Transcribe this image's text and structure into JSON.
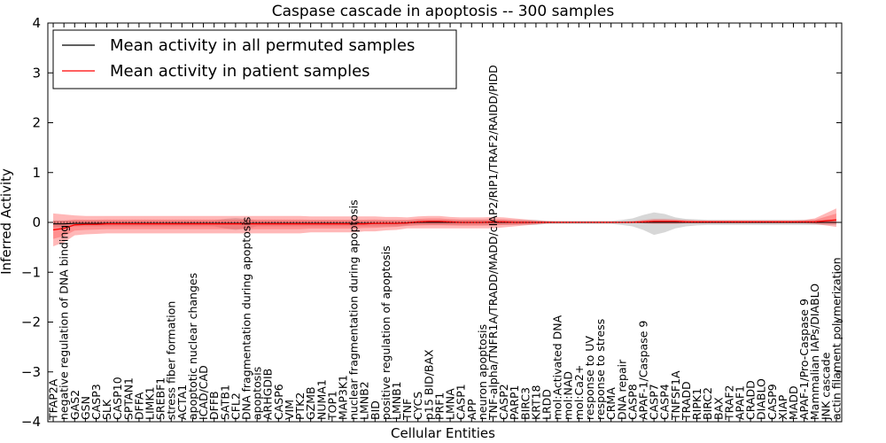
{
  "chart_data": {
    "type": "line",
    "title": "Caspase cascade in apoptosis -- 300 samples",
    "xlabel": "Cellular Entities",
    "ylabel": "Inferred Activity",
    "ylim": [
      -4,
      4
    ],
    "yticks": [
      -4,
      -3,
      -2,
      -1,
      0,
      1,
      2,
      3,
      4
    ],
    "ytick_labels": [
      "−4",
      "−3",
      "−2",
      "−1",
      "0",
      "1",
      "2",
      "3",
      "4"
    ],
    "legend_position": "top-left",
    "categories": [
      "TFAP2A",
      "negative regulation of DNA binding",
      "GAS2",
      "GSN",
      "CASP3",
      "SLK",
      "CASP10",
      "SPTAN1",
      "DFFA",
      "LIMK1",
      "SREBF1",
      "stress fiber formation",
      "ACTA1",
      "apoptotic nuclear changes",
      "ICAD/CAD",
      "DFFB",
      "SATB1",
      "CFL2",
      "DNA fragmentation during apoptosis",
      "apoptosis",
      "ARHGDIB",
      "CASP6",
      "VIM",
      "PTK2",
      "GZMB",
      "NUMA1",
      "TOP1",
      "MAP3K1",
      "nuclear fragmentation during apoptosis",
      "LMNB2",
      "BID",
      "positive regulation of apoptosis",
      "LMNB1",
      "TNF",
      "CYCS",
      "p15 BID/BAX",
      "PRF1",
      "LMNA",
      "CASP1",
      "APP",
      "neuron apoptosis",
      "TNF-alpha/TNFR1A/TRADD/MADD/cIAP2/RIP1/TRAF2/RAIDD/PIDD",
      "CASP2",
      "PARP1",
      "BIRC3",
      "KRT18",
      "LRDD",
      "mol:Activated DNA",
      "mol:NAD",
      "mol:Ca2+",
      "response to UV",
      "response to stress",
      "CRMA",
      "DNA repair",
      "CASP8",
      "APAF-1/Caspase 9",
      "CASP7",
      "CASP4",
      "TNFSF1A",
      "TRADD",
      "RIPK1",
      "BIRC2",
      "BAX",
      "TRAF2",
      "APAF1",
      "CRADD",
      "DIABLO",
      "CASP9",
      "XIAP",
      "MADD",
      "APAF-1/Pro-Caspase 9",
      "Mammalian IAPs/DIABLO",
      "JNK cascade",
      "actin filament polymerization"
    ],
    "series": [
      {
        "name": "Mean activity in all permuted samples",
        "color": "#000000",
        "values": [
          -0.03,
          -0.03,
          -0.02,
          -0.02,
          -0.02,
          -0.02,
          -0.02,
          -0.02,
          -0.02,
          -0.02,
          -0.02,
          -0.02,
          -0.02,
          -0.02,
          -0.02,
          -0.02,
          -0.02,
          -0.02,
          -0.02,
          -0.02,
          -0.02,
          -0.02,
          -0.02,
          -0.02,
          -0.02,
          -0.02,
          -0.02,
          -0.02,
          -0.02,
          -0.02,
          -0.02,
          -0.02,
          -0.02,
          -0.01,
          0.0,
          0.0,
          0.0,
          0.0,
          0.0,
          0.0,
          0.0,
          0.0,
          0.0,
          0.0,
          0.0,
          0.0,
          0.0,
          0.0,
          0.0,
          0.0,
          0.0,
          0.0,
          0.0,
          0.0,
          0.0,
          0.0,
          0.0,
          0.0,
          0.0,
          0.0,
          0.0,
          0.0,
          0.0,
          0.0,
          0.0,
          0.0,
          0.0,
          0.0,
          0.0,
          0.0,
          0.0,
          0.0,
          0.0,
          0.0
        ],
        "band_lower": [
          -0.1,
          -0.1,
          -0.08,
          -0.08,
          -0.08,
          -0.08,
          -0.08,
          -0.08,
          -0.08,
          -0.08,
          -0.08,
          -0.08,
          -0.08,
          -0.08,
          -0.08,
          -0.08,
          -0.12,
          -0.15,
          -0.12,
          -0.08,
          -0.08,
          -0.08,
          -0.08,
          -0.08,
          -0.08,
          -0.08,
          -0.08,
          -0.08,
          -0.08,
          -0.08,
          -0.08,
          -0.08,
          -0.08,
          -0.06,
          -0.05,
          -0.05,
          -0.05,
          -0.05,
          -0.05,
          -0.05,
          -0.05,
          -0.05,
          -0.05,
          -0.05,
          -0.05,
          -0.05,
          -0.03,
          -0.03,
          -0.03,
          -0.03,
          -0.03,
          -0.03,
          -0.03,
          -0.05,
          -0.08,
          -0.15,
          -0.25,
          -0.2,
          -0.12,
          -0.08,
          -0.06,
          -0.05,
          -0.05,
          -0.05,
          -0.05,
          -0.05,
          -0.05,
          -0.05,
          -0.05,
          -0.05,
          -0.05,
          -0.05,
          -0.05,
          -0.05
        ],
        "band_upper": [
          0.04,
          0.04,
          0.04,
          0.04,
          0.04,
          0.04,
          0.04,
          0.04,
          0.04,
          0.04,
          0.04,
          0.04,
          0.04,
          0.04,
          0.04,
          0.04,
          0.07,
          0.09,
          0.07,
          0.04,
          0.04,
          0.04,
          0.04,
          0.04,
          0.04,
          0.04,
          0.04,
          0.04,
          0.04,
          0.04,
          0.04,
          0.04,
          0.04,
          0.04,
          0.05,
          0.05,
          0.05,
          0.05,
          0.05,
          0.05,
          0.05,
          0.05,
          0.05,
          0.05,
          0.05,
          0.05,
          0.03,
          0.03,
          0.03,
          0.03,
          0.03,
          0.03,
          0.03,
          0.05,
          0.08,
          0.15,
          0.2,
          0.17,
          0.1,
          0.07,
          0.06,
          0.05,
          0.05,
          0.05,
          0.05,
          0.05,
          0.05,
          0.05,
          0.05,
          0.05,
          0.05,
          0.05,
          0.05,
          0.05
        ]
      },
      {
        "name": "Mean activity in patient samples",
        "color": "#ff0000",
        "values": [
          -0.15,
          -0.12,
          -0.05,
          -0.04,
          -0.04,
          -0.03,
          -0.03,
          -0.03,
          -0.03,
          -0.03,
          -0.03,
          -0.03,
          -0.03,
          -0.03,
          -0.03,
          -0.03,
          -0.03,
          -0.03,
          -0.03,
          -0.03,
          -0.03,
          -0.03,
          -0.03,
          -0.03,
          -0.03,
          -0.03,
          -0.03,
          -0.03,
          -0.03,
          -0.03,
          -0.02,
          -0.02,
          -0.02,
          -0.01,
          0.01,
          0.02,
          0.02,
          0.01,
          0.0,
          0.0,
          0.0,
          0.01,
          0.01,
          0.0,
          0.0,
          0.0,
          0.0,
          0.0,
          0.0,
          0.0,
          0.0,
          0.0,
          0.0,
          0.0,
          0.0,
          0.01,
          0.02,
          0.02,
          0.02,
          0.01,
          0.01,
          0.01,
          0.01,
          0.01,
          0.01,
          0.01,
          0.01,
          0.01,
          0.01,
          0.01,
          0.01,
          0.01,
          0.03,
          0.05
        ],
        "band_lower": [
          -0.48,
          -0.4,
          -0.26,
          -0.24,
          -0.23,
          -0.22,
          -0.22,
          -0.22,
          -0.22,
          -0.22,
          -0.22,
          -0.22,
          -0.22,
          -0.22,
          -0.22,
          -0.22,
          -0.22,
          -0.22,
          -0.22,
          -0.22,
          -0.22,
          -0.22,
          -0.22,
          -0.22,
          -0.2,
          -0.2,
          -0.2,
          -0.2,
          -0.2,
          -0.18,
          -0.18,
          -0.16,
          -0.15,
          -0.12,
          -0.12,
          -0.12,
          -0.12,
          -0.12,
          -0.12,
          -0.12,
          -0.12,
          -0.12,
          -0.1,
          -0.08,
          -0.06,
          -0.04,
          -0.02,
          -0.01,
          -0.01,
          -0.01,
          -0.01,
          -0.01,
          -0.01,
          -0.01,
          -0.01,
          -0.02,
          -0.03,
          -0.03,
          -0.03,
          -0.02,
          -0.02,
          -0.02,
          -0.02,
          -0.02,
          -0.02,
          -0.02,
          -0.02,
          -0.02,
          -0.02,
          -0.02,
          -0.02,
          -0.03,
          -0.06,
          -0.09
        ],
        "band_upper": [
          0.18,
          0.16,
          0.14,
          0.13,
          0.13,
          0.13,
          0.13,
          0.13,
          0.13,
          0.13,
          0.13,
          0.13,
          0.13,
          0.13,
          0.13,
          0.13,
          0.13,
          0.13,
          0.13,
          0.13,
          0.13,
          0.13,
          0.13,
          0.13,
          0.12,
          0.12,
          0.12,
          0.12,
          0.12,
          0.12,
          0.12,
          0.11,
          0.11,
          0.1,
          0.12,
          0.13,
          0.13,
          0.11,
          0.1,
          0.1,
          0.1,
          0.11,
          0.1,
          0.08,
          0.06,
          0.04,
          0.03,
          0.02,
          0.02,
          0.02,
          0.02,
          0.02,
          0.02,
          0.02,
          0.03,
          0.05,
          0.07,
          0.07,
          0.06,
          0.05,
          0.04,
          0.04,
          0.04,
          0.04,
          0.04,
          0.04,
          0.04,
          0.04,
          0.04,
          0.04,
          0.05,
          0.08,
          0.18,
          0.28
        ]
      }
    ]
  }
}
